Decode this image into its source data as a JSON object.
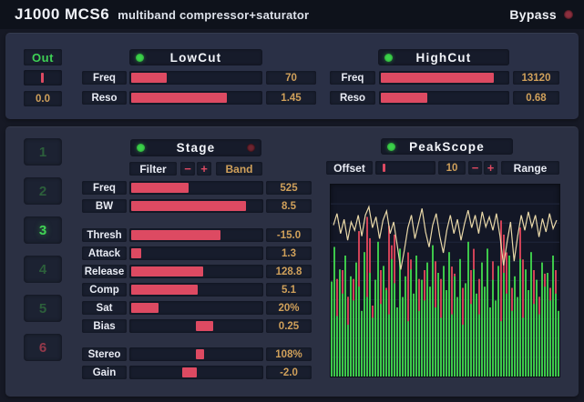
{
  "header": {
    "brand": "J1000 MCS6",
    "subtitle": "multiband compressor+saturator",
    "bypass_label": "Bypass"
  },
  "colors": {
    "window": "#161925",
    "headerbar": "#0e121b",
    "panel_top": "#2a3046",
    "panel_main": "#2b3043",
    "box": "#191e2e",
    "trackbg": "#171c2c",
    "headerbox": "#161b2a",
    "accent": "#dd4a62",
    "value_text": "#cfa05a",
    "led_green": "#3bd24a",
    "led_red": "#6f2430",
    "bypass_led": "#8c2f3e",
    "out_green": "#3ed155",
    "stage_active": "#41d455",
    "wave": "#e9d8a8",
    "bar_green": "#3dc84a",
    "bar_red": "#cf4257",
    "grid": "#20263c"
  },
  "out": {
    "label": "Out",
    "value": "0.0",
    "slider_pos": 0.45
  },
  "lowcut": {
    "title": "LowCut",
    "rows": [
      {
        "label": "Freq",
        "fill": 0.27,
        "value": "70"
      },
      {
        "label": "Reso",
        "fill": 0.72,
        "value": "1.45"
      }
    ]
  },
  "highcut": {
    "title": "HighCut",
    "rows": [
      {
        "label": "Freq",
        "fill": 0.87,
        "value": "13120"
      },
      {
        "label": "Reso",
        "fill": 0.36,
        "value": "0.68"
      }
    ]
  },
  "stages": {
    "items": [
      {
        "n": "1",
        "state": "dim"
      },
      {
        "n": "2",
        "state": "dim"
      },
      {
        "n": "3",
        "state": "active"
      },
      {
        "n": "4",
        "state": "dim"
      },
      {
        "n": "5",
        "state": "dim"
      },
      {
        "n": "6",
        "state": "red"
      }
    ]
  },
  "stage": {
    "title": "Stage",
    "filter_label": "Filter",
    "band_label": "Band",
    "minus": "−",
    "plus": "+",
    "rows": [
      {
        "label": "Freq",
        "type": "fill",
        "fill": 0.43,
        "value": "525"
      },
      {
        "label": "BW",
        "type": "fill",
        "fill": 0.855,
        "value": "8.5"
      },
      {
        "label": "Thresh",
        "type": "fill",
        "fill": 0.67,
        "value": "-15.0"
      },
      {
        "label": "Attack",
        "type": "fill",
        "fill": 0.076,
        "value": "1.3"
      },
      {
        "label": "Release",
        "type": "fill",
        "fill": 0.535,
        "value": "128.8"
      },
      {
        "label": "Comp",
        "type": "fill",
        "fill": 0.494,
        "value": "5.1"
      },
      {
        "label": "Sat",
        "type": "fill",
        "fill": 0.207,
        "value": "20%"
      },
      {
        "label": "Bias",
        "type": "handle",
        "start": 0.494,
        "width": 0.131,
        "value": "0.25"
      },
      {
        "label": "Stereo",
        "type": "handle",
        "start": 0.494,
        "width": 0.062,
        "value": "108%"
      },
      {
        "label": "Gain",
        "type": "handle",
        "start": 0.395,
        "width": 0.11,
        "value": "-2.0"
      }
    ]
  },
  "peakscope": {
    "title": "PeakScope",
    "offset_label": "Offset",
    "offset_slider_pos": 0.12,
    "offset_value": "10",
    "minus": "−",
    "plus": "+",
    "range_label": "Range"
  },
  "scope": {
    "waveform": [
      0.42,
      0.28,
      0.52,
      0.35,
      0.6,
      0.38,
      0.48,
      0.3,
      0.55,
      0.3,
      0.2,
      0.45,
      0.32,
      0.58,
      0.36,
      0.25,
      0.52,
      0.38,
      0.66,
      0.95,
      0.72,
      0.45,
      0.3,
      0.58,
      0.4,
      0.22,
      0.5,
      0.68,
      0.42,
      0.28,
      0.55,
      0.75,
      0.48,
      0.3,
      0.52,
      0.35,
      0.6,
      0.4,
      0.24,
      0.45,
      0.3,
      0.52,
      0.26,
      0.44,
      0.32,
      0.48,
      0.28,
      0.55,
      0.9,
      0.62,
      0.38,
      0.85,
      0.55,
      0.3,
      0.48,
      0.26,
      0.44,
      0.3,
      0.56,
      0.34,
      0.5,
      0.28,
      0.46,
      0.36
    ],
    "bars_green": [
      0.55,
      0.75,
      0.35,
      0.62,
      0.48,
      0.7,
      0.3,
      0.58,
      0.44,
      0.66,
      0.52,
      0.38,
      0.72,
      0.46,
      0.6,
      0.34,
      0.56,
      0.78,
      0.42,
      0.64,
      0.5,
      0.36,
      0.68,
      0.54,
      0.4,
      0.74,
      0.46,
      0.58,
      0.32,
      0.62,
      0.48,
      0.7,
      0.38,
      0.56,
      0.44,
      0.66,
      0.52,
      0.76,
      0.4,
      0.6,
      0.34,
      0.64,
      0.5,
      0.72,
      0.36,
      0.58,
      0.46,
      0.68,
      0.3,
      0.54,
      0.78,
      0.42,
      0.62,
      0.48,
      0.36,
      0.66,
      0.52,
      0.74,
      0.4,
      0.56,
      0.44,
      0.64,
      0.32,
      0.6,
      0.48,
      0.7,
      0.38,
      0.58,
      0.46,
      0.68,
      0.34,
      0.62,
      0.5,
      0.72,
      0.42,
      0.56,
      0.36,
      0.66,
      0.52,
      0.6,
      0.44,
      0.7,
      0.48,
      0.38
    ],
    "bars_red": [
      0.3,
      0.4,
      0.55,
      0.3,
      0.6,
      0.35,
      0.45,
      0.3,
      0.55,
      0.4,
      0.82,
      0.35,
      0.5,
      0.9,
      0.78,
      0.4,
      0.3,
      0.45,
      0.6,
      0.35,
      0.5,
      0.85,
      0.74,
      0.8,
      0.3,
      0.45,
      0.35,
      0.5,
      0.7,
      0.66,
      0.4,
      0.3,
      0.55,
      0.35,
      0.6,
      0.4,
      0.3,
      0.5,
      0.65,
      0.35,
      0.55,
      0.3,
      0.45,
      0.4,
      0.62,
      0.58,
      0.3,
      0.35,
      0.5,
      0.3,
      0.45,
      0.6,
      0.72,
      0.35,
      0.55,
      0.3,
      0.4,
      0.5,
      0.35,
      0.65,
      0.3,
      0.45,
      0.88,
      0.8,
      0.7,
      0.35,
      0.5,
      0.3,
      0.4,
      0.84,
      0.66,
      0.35,
      0.3,
      0.55,
      0.6,
      0.35,
      0.45,
      0.3,
      0.58,
      0.4,
      0.5,
      0.35,
      0.6,
      0.3
    ]
  }
}
